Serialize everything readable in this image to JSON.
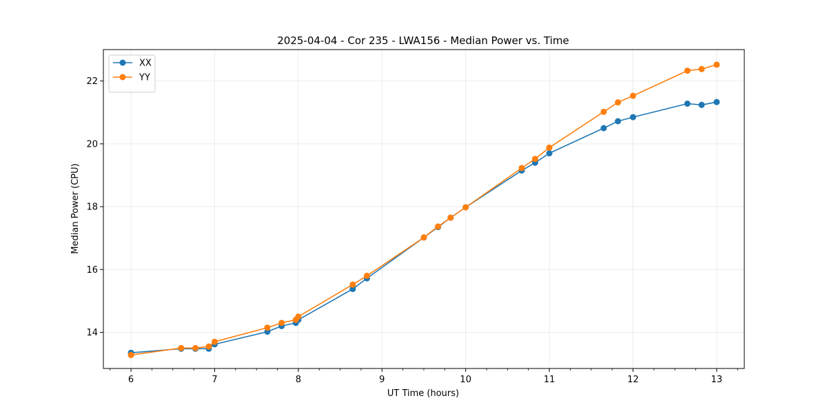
{
  "chart_data": {
    "type": "line",
    "title": "2025-04-04 - Cor 235 - LWA156 - Median Power vs. Time",
    "xlabel": "UT Time (hours)",
    "ylabel": "Median Power (CPU)",
    "xlim": [
      5.67,
      13.33
    ],
    "ylim": [
      12.85,
      23.0
    ],
    "xticks": [
      6,
      7,
      8,
      9,
      10,
      11,
      12,
      13
    ],
    "xtick_labels": [
      "6",
      "7",
      "8",
      "9",
      "10",
      "11",
      "12",
      "13"
    ],
    "xminor_step": 0.25,
    "yticks": [
      14,
      16,
      18,
      20,
      22
    ],
    "ytick_labels": [
      "14",
      "16",
      "18",
      "20",
      "22"
    ],
    "grid": true,
    "legend_position": "top-left",
    "series": [
      {
        "name": "XX",
        "color": "#1f77b4",
        "x": [
          6.0,
          6.6,
          6.77,
          6.93,
          7.0,
          7.63,
          7.8,
          7.97,
          8.0,
          8.65,
          8.82,
          9.5,
          9.67,
          9.82,
          10.0,
          10.67,
          10.83,
          11.0,
          11.65,
          11.82,
          12.0,
          12.65,
          12.82,
          13.0
        ],
        "y": [
          13.35,
          13.48,
          13.48,
          13.48,
          13.62,
          14.02,
          14.2,
          14.3,
          14.4,
          15.38,
          15.72,
          17.02,
          17.35,
          17.65,
          17.98,
          19.15,
          19.4,
          19.7,
          20.5,
          20.72,
          20.85,
          21.28,
          21.24,
          21.33
        ]
      },
      {
        "name": "YY",
        "color": "#ff7f0e",
        "x": [
          6.0,
          6.6,
          6.77,
          6.93,
          7.0,
          7.63,
          7.8,
          7.97,
          8.0,
          8.65,
          8.82,
          9.5,
          9.67,
          9.82,
          10.0,
          10.67,
          10.83,
          11.0,
          11.65,
          11.82,
          12.0,
          12.65,
          12.82,
          13.0
        ],
        "y": [
          13.28,
          13.5,
          13.5,
          13.55,
          13.7,
          14.15,
          14.3,
          14.4,
          14.5,
          15.52,
          15.8,
          17.02,
          17.37,
          17.65,
          17.98,
          19.23,
          19.52,
          19.88,
          21.02,
          21.32,
          21.53,
          22.33,
          22.38,
          22.52
        ]
      }
    ]
  }
}
